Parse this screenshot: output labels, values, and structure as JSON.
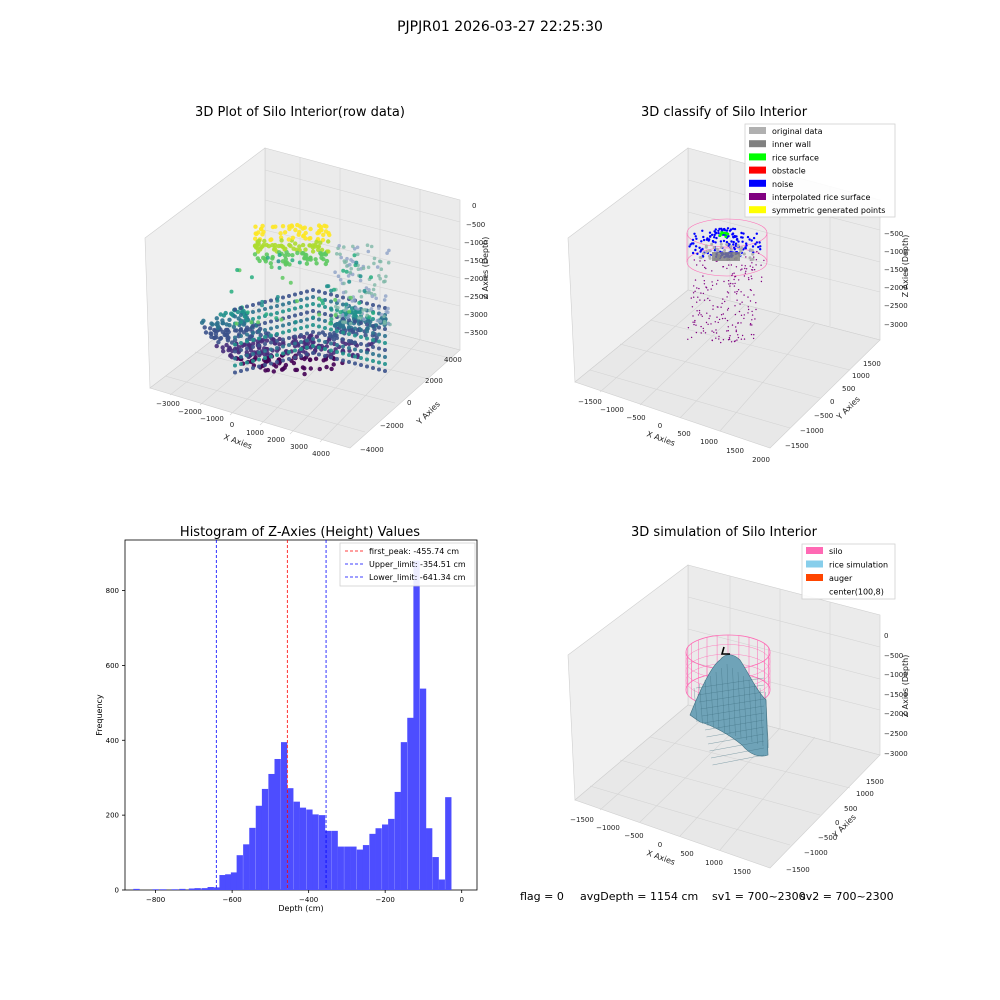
{
  "suptitle": "PJPJR01 2026-03-27 22:25:30",
  "footer": {
    "flag": "flag = 0",
    "avg": "avgDepth = 1154 cm",
    "sv1": "sv1 = 700~2300",
    "sv2": "sv2 = 700~2300"
  },
  "colors": {
    "pane": "#f2f2f2",
    "pane_dark": "#e6e6e6",
    "grid": "#d0d0d0",
    "hist_bar": "#4d4dff",
    "peak_line": "#ff0000",
    "limit_line": "#0000ff",
    "silo": "#ff69b4",
    "rice": "#87ceeb",
    "auger": "#ff4500",
    "inner_wall": "#808080",
    "original": "#b0b0b0",
    "rice_surface": "#00ff00",
    "obstacle": "#ff0000",
    "noise": "#0000ff",
    "interp": "#800080",
    "symmetric": "#ffff00"
  },
  "chart_data": [
    {
      "type": "scatter",
      "title": "3D Plot of Silo Interior(row data)",
      "projection": "3d",
      "xlabel": "X Axies",
      "ylabel": "Y Axies",
      "zlabel": "Z Axies (Depth)",
      "xticks": [
        "−3000",
        "−2000",
        "−1000",
        "0",
        "1000",
        "2000",
        "3000",
        "4000"
      ],
      "yticks": [
        "−4000",
        "−2000",
        "0",
        "2000",
        "4000"
      ],
      "zticks": [
        "0",
        "−500",
        "−1000",
        "−1500",
        "−2000",
        "−2500",
        "−3000",
        "−3500"
      ],
      "colormap": "viridis"
    },
    {
      "type": "scatter",
      "title": "3D classify of Silo Interior",
      "projection": "3d",
      "xlabel": "X Axies",
      "ylabel": "Y Axies",
      "zlabel": "Z Axies (Depth)",
      "xticks": [
        "−1500",
        "−1000",
        "−500",
        "0",
        "500",
        "1000",
        "1500",
        "2000"
      ],
      "yticks": [
        "−1500",
        "−1000",
        "−500",
        "0",
        "500",
        "1000",
        "1500"
      ],
      "zticks": [
        "−500",
        "−1000",
        "−1500",
        "−2000",
        "−2500",
        "−3000"
      ],
      "legend": [
        {
          "label": "original data",
          "color": "#b0b0b0"
        },
        {
          "label": "inner wall",
          "color": "#808080"
        },
        {
          "label": "rice surface",
          "color": "#00ff00"
        },
        {
          "label": "obstacle",
          "color": "#ff0000"
        },
        {
          "label": "noise",
          "color": "#0000ff"
        },
        {
          "label": "interpolated rice surface",
          "color": "#800080"
        },
        {
          "label": "symmetric generated points",
          "color": "#ffff00"
        }
      ],
      "legend_loc": "top-right"
    },
    {
      "type": "bar",
      "title": "Histogram of Z-Axies (Height) Values",
      "xlabel": "Depth (cm)",
      "ylabel": "Frequency",
      "xlim": [
        -880,
        40
      ],
      "ylim": [
        0,
        935
      ],
      "xticks": [
        -800,
        -600,
        -400,
        -200,
        0
      ],
      "xtick_labels": [
        "−800",
        "−600",
        "−400",
        "−200",
        "0"
      ],
      "yticks": [
        0,
        200,
        400,
        600,
        800
      ],
      "bin_width": 16.5,
      "bins": [
        [
          -850,
          3
        ],
        [
          -800,
          2
        ],
        [
          -780,
          2
        ],
        [
          -750,
          2
        ],
        [
          -730,
          3
        ],
        [
          -705,
          4
        ],
        [
          -690,
          5
        ],
        [
          -672,
          5
        ],
        [
          -656,
          8
        ],
        [
          -640,
          7
        ],
        [
          -625,
          40
        ],
        [
          -610,
          42
        ],
        [
          -595,
          47
        ],
        [
          -580,
          93
        ],
        [
          -563,
          122
        ],
        [
          -547,
          166
        ],
        [
          -530,
          225
        ],
        [
          -514,
          270
        ],
        [
          -497,
          310
        ],
        [
          -481,
          350
        ],
        [
          -464,
          395
        ],
        [
          -448,
          272
        ],
        [
          -431,
          236
        ],
        [
          -415,
          220
        ],
        [
          -398,
          215
        ],
        [
          -382,
          202
        ],
        [
          -365,
          200
        ],
        [
          -349,
          158
        ],
        [
          -332,
          158
        ],
        [
          -316,
          116
        ],
        [
          -299,
          116
        ],
        [
          -283,
          116
        ],
        [
          -266,
          108
        ],
        [
          -250,
          120
        ],
        [
          -233,
          150
        ],
        [
          -217,
          165
        ],
        [
          -200,
          175
        ],
        [
          -184,
          190
        ],
        [
          -167,
          262
        ],
        [
          -151,
          395
        ],
        [
          -134,
          460
        ],
        [
          -118,
          880
        ],
        [
          -101,
          538
        ],
        [
          -85,
          165
        ],
        [
          -68,
          88
        ],
        [
          -52,
          28
        ],
        [
          -35,
          248
        ]
      ],
      "vlines": [
        {
          "label": "first_peak: -455.74 cm",
          "x": -455.74,
          "color": "#ff0000"
        },
        {
          "label": "Upper_limit: -354.51 cm",
          "x": -354.51,
          "color": "#0000ff"
        },
        {
          "label": "Lower_limit: -641.34 cm",
          "x": -641.34,
          "color": "#0000ff"
        }
      ],
      "legend_loc": "top-right"
    },
    {
      "type": "area",
      "title": "3D simulation of Silo Interior",
      "projection": "3d",
      "xlabel": "X Axies",
      "ylabel": "Y Axies",
      "zlabel": "Z Axies (Depth)",
      "xticks": [
        "−1500",
        "−1000",
        "−500",
        "0",
        "500",
        "1000",
        "1500"
      ],
      "yticks": [
        "−1500",
        "−1000",
        "−500",
        "0",
        "500",
        "1000",
        "1500"
      ],
      "zticks": [
        "0",
        "−500",
        "−1000",
        "−1500",
        "−2000",
        "−2500",
        "−3000"
      ],
      "legend": [
        {
          "label": "silo",
          "color": "#ff69b4"
        },
        {
          "label": "rice simulation",
          "color": "#87ceeb"
        },
        {
          "label": "auger",
          "color": "#ff4500"
        },
        {
          "label": "center(100,8)",
          "color": ""
        }
      ],
      "legend_loc": "top-right"
    }
  ]
}
